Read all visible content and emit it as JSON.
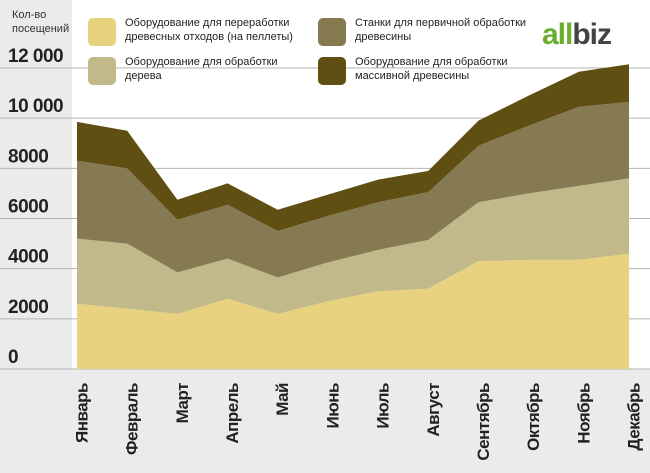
{
  "chart_data": {
    "type": "stacked_area",
    "y_label": "Кол-во посещений",
    "logo": {
      "part1": "all",
      "part2": "biz"
    },
    "categories": [
      "Январь",
      "Февраль",
      "Март",
      "Апрель",
      "Май",
      "Июнь",
      "Июль",
      "Август",
      "Сентябрь",
      "Октябрь",
      "Ноябрь",
      "Декабрь"
    ],
    "series": [
      {
        "name": "Оборудование для переработки древесных отходов (на пеллеты)",
        "color": "#e8d27f",
        "values": [
          2600,
          2400,
          2200,
          2800,
          2200,
          2700,
          3100,
          3200,
          4300,
          4350,
          4350,
          4600
        ]
      },
      {
        "name": "Оборудование для обработки дерева",
        "color": "#c2b98a",
        "values": [
          2600,
          2600,
          1650,
          1600,
          1450,
          1550,
          1650,
          1950,
          2350,
          2650,
          2950,
          3000
        ]
      },
      {
        "name": "Станки для первичной обработки древесины",
        "color": "#857a52",
        "values": [
          3100,
          3000,
          2100,
          2150,
          1850,
          1850,
          1900,
          1900,
          2250,
          2700,
          3150,
          3050
        ]
      },
      {
        "name": "Оборудование для обработки массивной древесины",
        "color": "#5f4f12",
        "values": [
          1550,
          1500,
          800,
          850,
          850,
          850,
          900,
          850,
          1000,
          1200,
          1400,
          1500
        ]
      }
    ],
    "ylim": [
      0,
      12000
    ],
    "yticks": [
      0,
      2000,
      4000,
      6000,
      8000,
      {
        "value": 10000,
        "label": "10 000"
      },
      {
        "value": 12000,
        "label": "12 000"
      }
    ],
    "grid": true
  }
}
